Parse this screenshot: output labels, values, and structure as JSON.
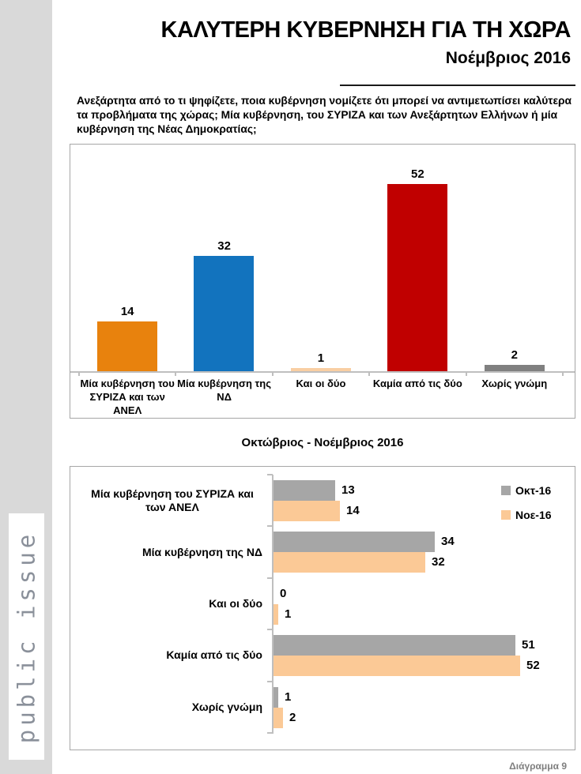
{
  "sidebar": {
    "brand": "public issue"
  },
  "header": {
    "title": "ΚΑΛΥΤΕΡΗ ΚΥΒΕΡΝΗΣΗ ΓΙΑ ΤΗ ΧΩΡΑ",
    "subtitle": "Νοέμβριος 2016"
  },
  "question": "Ανεξάρτητα από το τι ψηφίζετε, ποια κυβέρνηση νομίζετε ότι μπορεί να αντιμετωπίσει καλύτερα τα προβλήματα της χώρας; Μία κυβέρνηση, του ΣΥΡΙΖΑ και των Ανεξάρτητων Ελλήνων ή μία κυβέρνηση της Νέας Δημοκρατίας;",
  "page": {
    "footer_label": "Διάγραμμα 9"
  },
  "chart_data": [
    {
      "type": "bar",
      "title": "",
      "categories": [
        "Μία κυβέρνηση του ΣΥΡΙΖΑ και των ΑΝΕΛ",
        "Μία κυβέρνηση της ΝΔ",
        "Και οι δύο",
        "Καμία από τις δύο",
        "Χωρίς γνώμη"
      ],
      "values": [
        14,
        32,
        1,
        52,
        2
      ],
      "bar_colors": [
        "#e8820d",
        "#1273be",
        "#f9cea3",
        "#c00000",
        "#808080"
      ],
      "ylim": [
        0,
        60
      ],
      "grid": false,
      "data_labels": true,
      "legend_position": "none"
    },
    {
      "type": "bar-horizontal",
      "title": "Οκτώβριος - Νοέμβριος 2016",
      "categories": [
        "Μία κυβέρνηση του ΣΥΡΙΖΑ και των ΑΝΕΛ",
        "Μία κυβέρνηση της ΝΔ",
        "Και οι δύο",
        "Καμία από τις δύο",
        "Χωρίς γνώμη"
      ],
      "series": [
        {
          "name": "Οκτ-16",
          "color": "#a6a6a6",
          "values": [
            13,
            34,
            0,
            51,
            1
          ]
        },
        {
          "name": "Νοε-16",
          "color": "#fbc996",
          "values": [
            14,
            32,
            1,
            52,
            2
          ]
        }
      ],
      "xlim": [
        0,
        60
      ],
      "grid": false,
      "data_labels": true,
      "legend_position": "top-right"
    }
  ]
}
